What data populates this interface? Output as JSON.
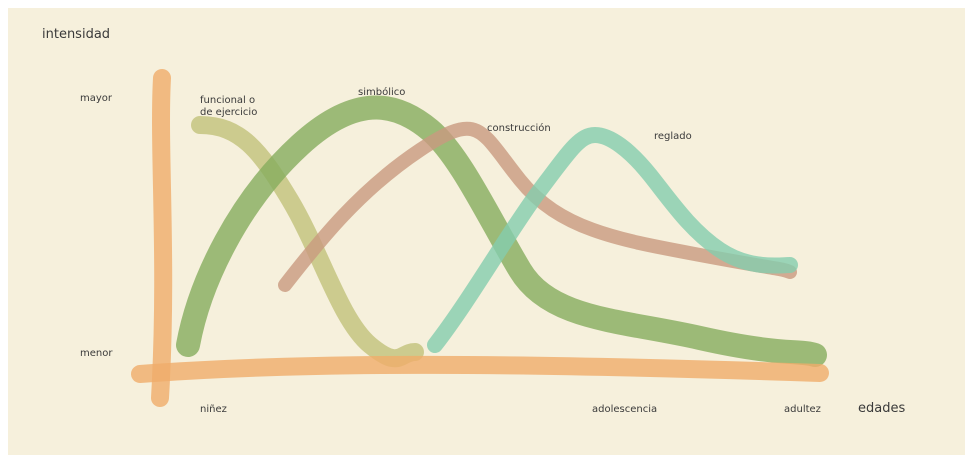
{
  "axes": {
    "y_label": "intensidad",
    "x_label": "edades",
    "y_high": "mayor",
    "y_low": "menor",
    "x_stages": [
      "niñez",
      "adolescencia",
      "adultez"
    ]
  },
  "curves": [
    {
      "label_lines": [
        "funcional o",
        "de ejercicio"
      ]
    },
    {
      "label_lines": [
        "simbólico"
      ]
    },
    {
      "label_lines": [
        "construcción"
      ]
    },
    {
      "label_lines": [
        "reglado"
      ]
    }
  ]
}
